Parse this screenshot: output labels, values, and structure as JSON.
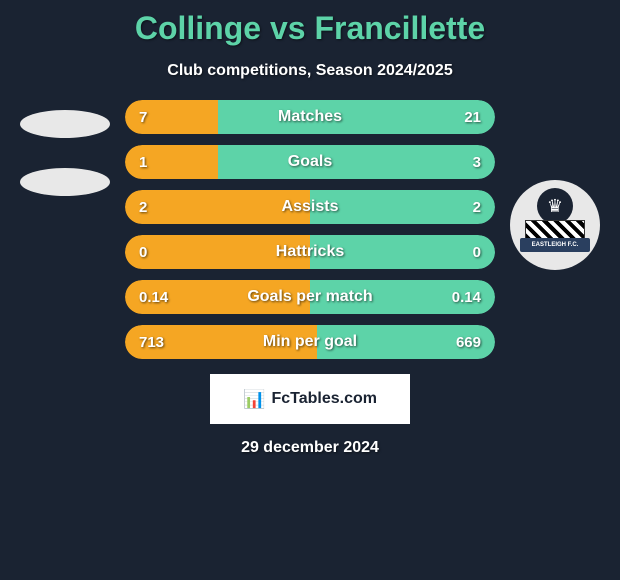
{
  "header": {
    "title": "Collinge vs Francillette",
    "subtitle": "Club competitions, Season 2024/2025",
    "title_color": "#5dd3a8",
    "subtitle_color": "#ffffff"
  },
  "background_color": "#1a2332",
  "stats": [
    {
      "label": "Matches",
      "left_value": "7",
      "right_value": "21",
      "left_pct": 25,
      "left_color": "#f5a623",
      "right_color": "#5dd3a8"
    },
    {
      "label": "Goals",
      "left_value": "1",
      "right_value": "3",
      "left_pct": 25,
      "left_color": "#f5a623",
      "right_color": "#5dd3a8"
    },
    {
      "label": "Assists",
      "left_value": "2",
      "right_value": "2",
      "left_pct": 50,
      "left_color": "#f5a623",
      "right_color": "#5dd3a8"
    },
    {
      "label": "Hattricks",
      "left_value": "0",
      "right_value": "0",
      "left_pct": 50,
      "left_color": "#f5a623",
      "right_color": "#5dd3a8"
    },
    {
      "label": "Goals per match",
      "left_value": "0.14",
      "right_value": "0.14",
      "left_pct": 50,
      "left_color": "#f5a623",
      "right_color": "#5dd3a8"
    },
    {
      "label": "Min per goal",
      "left_value": "713",
      "right_value": "669",
      "left_pct": 52,
      "left_color": "#f5a623",
      "right_color": "#5dd3a8"
    }
  ],
  "badge": {
    "banner_text": "EASTLEIGH F.C."
  },
  "footer": {
    "logo_text": "FcTables.com",
    "date": "29 december 2024"
  }
}
